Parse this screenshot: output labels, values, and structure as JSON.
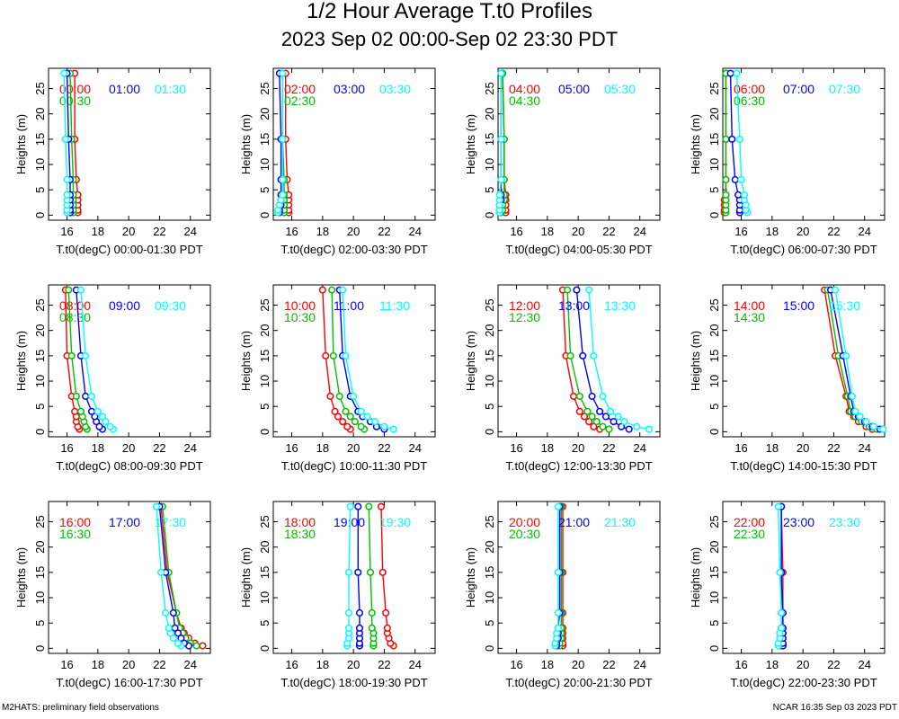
{
  "title": "1/2 Hour Average T.t0 Profiles",
  "subtitle": "2023 Sep 02 00:00-Sep 02 23:30 PDT",
  "footer_left": "M2HATS: preliminary field observations",
  "footer_right": "NCAR 16:35 Sep 03 2023 PDT",
  "colors": {
    "first": "#ff0000",
    "second": "#00c000",
    "third": "#0000ff",
    "fourth": "#00ffff",
    "axis": "#000000"
  },
  "chart_data": {
    "type": "line",
    "ylabel": "Heights (m)",
    "heights": [
      0.5,
      1,
      2,
      3,
      4,
      7,
      15,
      28
    ],
    "xlim": [
      14.8,
      25.3
    ],
    "ylim": [
      -1,
      29
    ],
    "xticks": [
      16,
      18,
      20,
      22,
      24
    ],
    "yticks": [
      0,
      5,
      10,
      15,
      20,
      25
    ],
    "panels": [
      {
        "xlabel": "T.t0(degC) 00:00-01:30 PDT",
        "series": [
          {
            "name": "00:00",
            "values": [
              16.7,
              16.7,
              16.7,
              16.7,
              16.7,
              16.6,
              16.5,
              16.5
            ]
          },
          {
            "name": "00:30",
            "values": [
              16.4,
              16.4,
              16.4,
              16.4,
              16.4,
              16.4,
              16.3,
              16.2
            ]
          },
          {
            "name": "01:00",
            "values": [
              16.2,
              16.2,
              16.2,
              16.2,
              16.2,
              16.2,
              16.1,
              16.0
            ]
          },
          {
            "name": "01:30",
            "values": [
              16.0,
              16.0,
              16.0,
              16.0,
              16.0,
              16.0,
              15.9,
              15.8
            ]
          }
        ]
      },
      {
        "xlabel": "T.t0(degC) 02:00-03:30 PDT",
        "series": [
          {
            "name": "02:00",
            "values": [
              15.8,
              15.8,
              15.8,
              15.8,
              15.8,
              15.7,
              15.6,
              15.6
            ]
          },
          {
            "name": "02:30",
            "values": [
              15.5,
              15.5,
              15.5,
              15.5,
              15.5,
              15.5,
              15.4,
              15.4
            ]
          },
          {
            "name": "03:00",
            "values": [
              15.2,
              15.2,
              15.3,
              15.3,
              15.3,
              15.3,
              15.3,
              15.2
            ]
          },
          {
            "name": "03:30",
            "values": [
              15.1,
              15.1,
              15.2,
              15.3,
              15.4,
              15.4,
              15.4,
              15.4
            ]
          }
        ]
      },
      {
        "xlabel": "T.t0(degC) 04:00-05:30 PDT",
        "series": [
          {
            "name": "04:00",
            "values": [
              15.3,
              15.3,
              15.3,
              15.3,
              15.3,
              15.2,
              15.2,
              15.1
            ]
          },
          {
            "name": "04:30",
            "values": [
              15.0,
              15.1,
              15.1,
              15.2,
              15.2,
              15.2,
              15.2,
              15.1
            ]
          },
          {
            "name": "05:00",
            "values": [
              14.9,
              14.9,
              14.9,
              15.0,
              15.0,
              15.0,
              15.0,
              15.0
            ]
          },
          {
            "name": "05:30",
            "values": [
              14.9,
              14.9,
              14.9,
              14.9,
              14.9,
              15.0,
              15.0,
              15.0
            ]
          }
        ]
      },
      {
        "xlabel": "T.t0(degC) 06:00-07:30 PDT",
        "series": [
          {
            "name": "06:00",
            "values": [
              14.9,
              14.9,
              14.9,
              14.9,
              15.0,
              15.0,
              15.0,
              15.0
            ]
          },
          {
            "name": "06:30",
            "values": [
              15.0,
              15.0,
              15.0,
              15.0,
              15.0,
              15.0,
              15.0,
              15.0
            ]
          },
          {
            "name": "07:00",
            "values": [
              15.9,
              15.9,
              15.9,
              15.9,
              15.8,
              15.6,
              15.4,
              15.3
            ]
          },
          {
            "name": "07:30",
            "values": [
              16.4,
              16.3,
              16.3,
              16.2,
              16.2,
              16.0,
              15.9,
              15.7
            ]
          }
        ]
      },
      {
        "xlabel": "T.t0(degC) 08:00-09:30 PDT",
        "series": [
          {
            "name": "08:00",
            "values": [
              16.8,
              16.7,
              16.6,
              16.6,
              16.5,
              16.3,
              16.0,
              15.9
            ]
          },
          {
            "name": "08:30",
            "values": [
              17.3,
              17.2,
              17.1,
              17.0,
              16.9,
              16.6,
              16.3,
              16.1
            ]
          },
          {
            "name": "09:00",
            "values": [
              18.3,
              18.1,
              17.9,
              17.8,
              17.6,
              17.2,
              16.9,
              16.6
            ]
          },
          {
            "name": "09:30",
            "values": [
              19.0,
              18.8,
              18.5,
              18.3,
              18.0,
              17.6,
              17.2,
              16.9
            ]
          }
        ]
      },
      {
        "xlabel": "T.t0(degC) 10:00-11:30 PDT",
        "series": [
          {
            "name": "10:00",
            "values": [
              19.8,
              19.6,
              19.3,
              19.0,
              18.8,
              18.5,
              18.2,
              18.0
            ]
          },
          {
            "name": "10:30",
            "values": [
              20.7,
              20.5,
              20.1,
              19.8,
              19.5,
              19.1,
              18.7,
              18.6
            ]
          },
          {
            "name": "11:00",
            "values": [
              22.0,
              21.5,
              21.1,
              20.6,
              20.3,
              19.8,
              19.3,
              19.1
            ]
          },
          {
            "name": "11:30",
            "values": [
              22.6,
              22.0,
              21.4,
              20.9,
              20.5,
              20.0,
              19.5,
              19.3
            ]
          }
        ]
      },
      {
        "xlabel": "T.t0(degC) 12:00-13:30 PDT",
        "series": [
          {
            "name": "12:00",
            "values": [
              21.4,
              21.0,
              20.7,
              20.4,
              20.1,
              19.7,
              19.2,
              19.0
            ]
          },
          {
            "name": "12:30",
            "values": [
              22.0,
              21.6,
              21.2,
              20.9,
              20.6,
              20.1,
              19.5,
              19.3
            ]
          },
          {
            "name": "13:00",
            "values": [
              23.3,
              22.8,
              22.3,
              21.8,
              21.4,
              20.9,
              20.3,
              19.9
            ]
          },
          {
            "name": "13:30",
            "values": [
              24.6,
              23.8,
              23.0,
              22.6,
              22.1,
              21.6,
              21.0,
              20.7
            ]
          }
        ]
      },
      {
        "xlabel": "T.t0(degC) 14:00-15:30 PDT",
        "series": [
          {
            "name": "14:00",
            "values": [
              24.5,
              24.1,
              23.6,
              23.3,
              23.0,
              22.8,
              22.1,
              21.4
            ]
          },
          {
            "name": "14:30",
            "values": [
              24.8,
              24.3,
              23.8,
              23.4,
              23.1,
              22.9,
              22.3,
              21.6
            ]
          },
          {
            "name": "15:00",
            "values": [
              25.0,
              24.5,
              24.0,
              23.6,
              23.3,
              23.1,
              22.6,
              21.8
            ]
          },
          {
            "name": "15:30",
            "values": [
              25.2,
              24.6,
              24.1,
              23.7,
              23.4,
              23.2,
              22.8,
              22.1
            ]
          }
        ]
      },
      {
        "xlabel": "T.t0(degC) 16:00-17:30 PDT",
        "series": [
          {
            "name": "16:00",
            "values": [
              24.8,
              24.3,
              23.9,
              23.6,
              23.4,
              23.1,
              22.5,
              22.1
            ]
          },
          {
            "name": "16:30",
            "values": [
              24.4,
              24.0,
              23.7,
              23.5,
              23.3,
              23.1,
              22.6,
              22.2
            ]
          },
          {
            "name": "17:00",
            "values": [
              23.9,
              23.6,
              23.4,
              23.2,
              23.0,
              22.9,
              22.4,
              22.0
            ]
          },
          {
            "name": "17:30",
            "values": [
              23.4,
              23.2,
              22.9,
              22.7,
              22.6,
              22.4,
              22.1,
              21.8
            ]
          }
        ]
      },
      {
        "xlabel": "T.t0(degC) 18:00-19:30 PDT",
        "series": [
          {
            "name": "18:00",
            "values": [
              22.6,
              22.4,
              22.3,
              22.2,
              22.2,
              22.1,
              21.9,
              21.8
            ]
          },
          {
            "name": "18:30",
            "values": [
              21.3,
              21.3,
              21.3,
              21.3,
              21.2,
              21.2,
              21.1,
              21.0
            ]
          },
          {
            "name": "19:00",
            "values": [
              20.4,
              20.4,
              20.4,
              20.4,
              20.4,
              20.4,
              20.3,
              20.3
            ]
          },
          {
            "name": "19:30",
            "values": [
              19.6,
              19.6,
              19.7,
              19.7,
              19.7,
              19.7,
              19.7,
              19.8
            ]
          }
        ]
      },
      {
        "xlabel": "T.t0(degC) 20:00-21:30 PDT",
        "series": [
          {
            "name": "20:00",
            "values": [
              19.0,
              19.0,
              19.0,
              19.0,
              19.0,
              19.0,
              19.0,
              19.0
            ]
          },
          {
            "name": "20:30",
            "values": [
              18.8,
              18.8,
              18.9,
              18.9,
              18.9,
              18.9,
              18.9,
              18.9
            ]
          },
          {
            "name": "21:00",
            "values": [
              18.6,
              18.6,
              18.7,
              18.7,
              18.7,
              18.8,
              18.8,
              18.8
            ]
          },
          {
            "name": "21:30",
            "values": [
              18.5,
              18.5,
              18.6,
              18.6,
              18.7,
              18.7,
              18.7,
              18.7
            ]
          }
        ]
      },
      {
        "xlabel": "T.t0(degC) 22:00-23:30 PDT",
        "series": [
          {
            "name": "22:00",
            "values": [
              18.7,
              18.7,
              18.7,
              18.7,
              18.7,
              18.7,
              18.7,
              18.6
            ]
          },
          {
            "name": "22:30",
            "values": [
              18.5,
              18.5,
              18.6,
              18.6,
              18.6,
              18.6,
              18.6,
              18.6
            ]
          },
          {
            "name": "23:00",
            "values": [
              18.7,
              18.7,
              18.7,
              18.7,
              18.7,
              18.7,
              18.6,
              18.6
            ]
          },
          {
            "name": "23:30",
            "values": [
              18.4,
              18.4,
              18.5,
              18.5,
              18.6,
              18.6,
              18.5,
              18.4
            ]
          }
        ]
      }
    ]
  }
}
